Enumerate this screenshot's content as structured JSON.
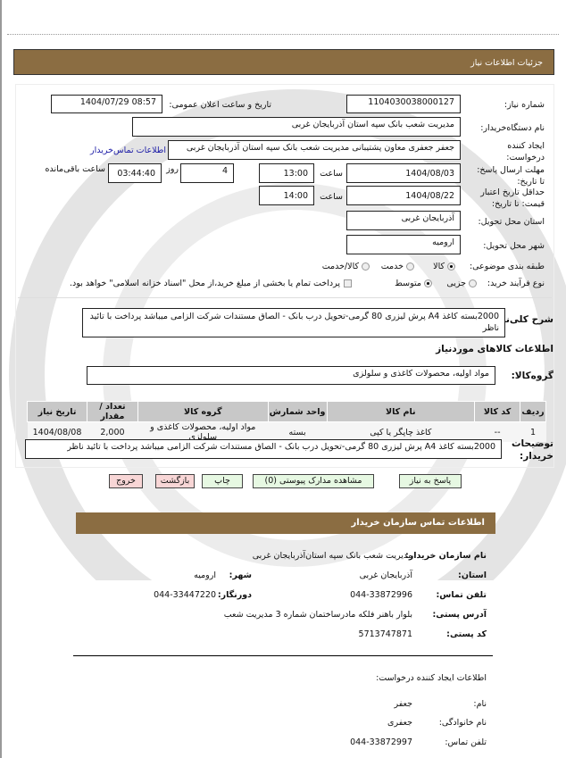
{
  "header": {
    "title": "جزئیات اطلاعات نیاز"
  },
  "form": {
    "need_number": {
      "label": "شماره نیاز:",
      "value": "1104030038000127"
    },
    "announce": {
      "label": "تاریخ و ساعت اعلان عمومی:",
      "value": "1404/07/29 08:57"
    },
    "buyer_org": {
      "label": "نام دستگاه‌خریدار:",
      "value": "مدیریت شعب بانک سپه استان آذربایجان غربی"
    },
    "creator": {
      "label": "ایجاد کننده درخواست:",
      "value": "جعفر جعفری معاون پشتیبانی مدیریت شعب بانک سپه استان آذربایجان غربی",
      "link": "اطلاعات تماس‌خریدار"
    },
    "deadline": {
      "label": "مهلت ارسال پاسخ: تا تاریخ:",
      "date": "1404/08/03",
      "time_label": "ساعت",
      "time": "13:00",
      "days": "4",
      "days_label": "روز",
      "remaining": "03:44:40",
      "remaining_label": "ساعت باقی‌مانده"
    },
    "validity": {
      "label": "حداقل تاریخ اعتبار قیمت: تا تاریخ:",
      "date": "1404/08/22",
      "time_label": "ساعت",
      "time": "14:00"
    },
    "province": {
      "label": "استان محل تحویل:",
      "value": "آذربایجان غربی"
    },
    "city": {
      "label": "شهر محل تحویل:",
      "value": "ارومیه"
    },
    "category": {
      "label": "طبقه بندی موضوعی:",
      "options": [
        "کالا",
        "خدمت",
        "کالا/خدمت"
      ],
      "selected": "کالا"
    },
    "process": {
      "label": "نوع فرآیند خرید:",
      "options": [
        "جزیی",
        "متوسط"
      ],
      "selected": "متوسط",
      "checkbox_label": "پرداخت تمام یا بخشی از مبلغ خرید،از محل \"اسناد خزانه اسلامی\" خواهد بود."
    },
    "description": {
      "label": "شرح کلی‌نیاز:",
      "value": "2000بسته کاغذ A4 پرش لیزری 80 گرمی-تحویل درب بانک - الصاق مستندات شرکت الزامی میباشد پرداخت با تائید ناظر"
    },
    "goods_title": "اطلاعات کالاهای موردنیاز",
    "goods_group": {
      "label": "گروه‌کالا:",
      "value": "مواد اولیه، محصولات کاغذی و سلولزی"
    },
    "table": {
      "headers": [
        "ردیف",
        "کد کالا",
        "نام کالا",
        "واحد شمارش",
        "گروه کالا",
        "تعداد / مقدار",
        "تاریخ نیاز"
      ],
      "rows": [
        [
          "1",
          "--",
          "کاغذ چاپگر یا کپی",
          "بسته",
          "مواد اولیه، محصولات کاغذی و سلولزی",
          "2,000",
          "1404/08/08"
        ]
      ]
    },
    "buyer_notes": {
      "label": "توضیحات خریدار:",
      "value": "2000بسته کاغذ A4 پرش لیزری 80 گرمی-تحویل درب بانک - الصاق مستندات شرکت الزامی میباشد پرداخت با تائید ناظر"
    }
  },
  "buttons": {
    "reply": "پاسخ به نیاز",
    "attachments": "مشاهده مدارک پیوستی (0)",
    "print": "چاپ",
    "back": "بازگشت",
    "exit": "خروج"
  },
  "contact": {
    "title": "اطلاعات تماس سازمان خریدار",
    "org_label": "نام سازمان خریدار:",
    "org": "مدیریت شعب بانک سپه استان‌آذربایجان غربی",
    "province_label": "استان:",
    "province": "آذربایجان غربی",
    "city_label": "شهر:",
    "city": "ارومیه",
    "phone_label": "تلفن تماس:",
    "phone": "044-33872996",
    "fax_label": "دورنگار:",
    "fax": "044-33447220",
    "address_label": "آدرس پستی:",
    "address": "بلوار باهنر فلکه مادرساختمان شماره 3 مدیریت شعب",
    "postal_label": "کد پستی:",
    "postal": "5713747871",
    "creator_title": "اطلاعات ایجاد کننده درخواست:",
    "name_label": "نام:",
    "name": "جعفر",
    "family_label": "نام خانوادگی:",
    "family": "جعفری",
    "creator_phone_label": "تلفن تماس:",
    "creator_phone": "044-33872997"
  },
  "colors": {
    "bar": "#8b6d42",
    "link": "#1a1aa6",
    "green_btn": "#e6f8e2",
    "red_btn": "#f8d6d6"
  }
}
